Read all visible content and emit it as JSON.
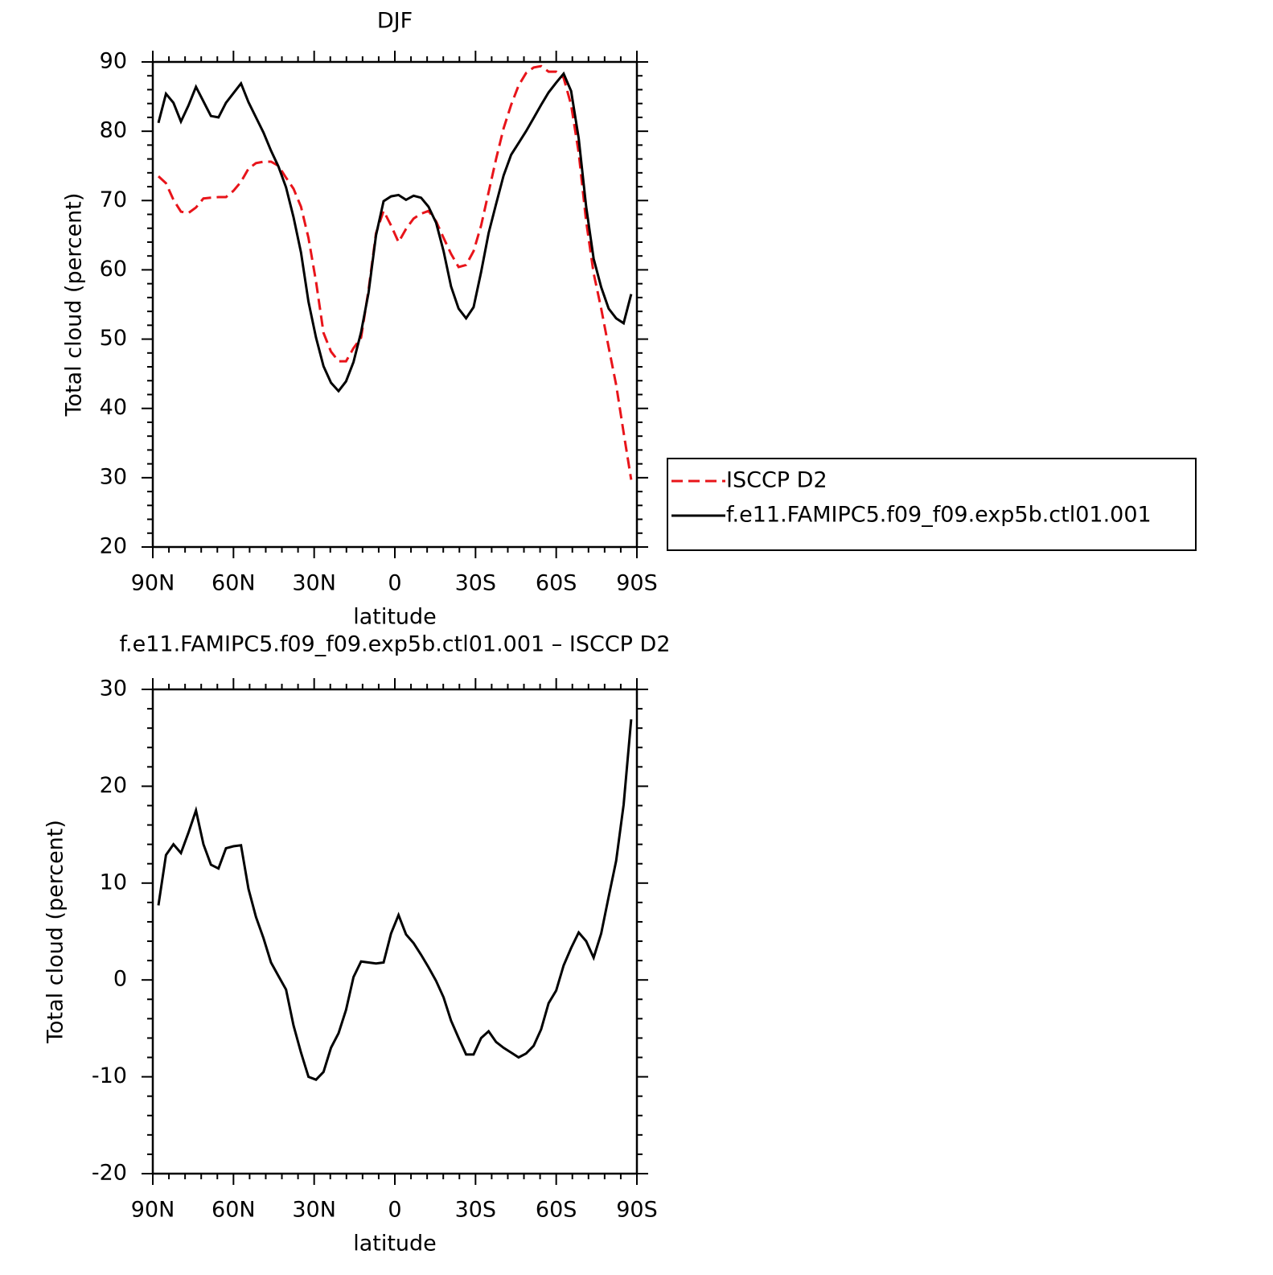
{
  "chart_data": [
    {
      "type": "line",
      "title": "DJF",
      "xlabel": "latitude",
      "ylabel": "Total cloud (percent)",
      "xlim": [
        90,
        -90
      ],
      "ylim": [
        20,
        90
      ],
      "xticks": [
        {
          "value": 90,
          "label": "90N"
        },
        {
          "value": 60,
          "label": "60N"
        },
        {
          "value": 30,
          "label": "30N"
        },
        0,
        {
          "value": -30,
          "label": "30S"
        },
        {
          "value": -60,
          "label": "60S"
        },
        {
          "value": -90,
          "label": "90S"
        }
      ],
      "yticks": [
        20,
        30,
        40,
        50,
        60,
        70,
        80,
        90
      ],
      "legend": "right",
      "x": [
        87.9,
        85.11,
        82.32,
        79.53,
        76.74,
        73.95,
        71.16,
        68.37,
        65.58,
        62.79,
        60.0,
        57.21,
        54.42,
        51.63,
        48.84,
        46.05,
        43.26,
        40.47,
        37.68,
        34.89,
        32.1,
        29.31,
        26.52,
        23.73,
        20.94,
        18.15,
        15.36,
        12.57,
        9.78,
        6.99,
        4.2,
        1.41,
        -1.38,
        -4.17,
        -6.96,
        -9.75,
        -12.54,
        -15.33,
        -18.12,
        -20.91,
        -23.7,
        -26.49,
        -29.28,
        -32.07,
        -34.86,
        -37.65,
        -40.44,
        -43.23,
        -46.02,
        -48.81,
        -51.6,
        -54.39,
        -57.18,
        -59.97,
        -62.76,
        -65.55,
        -68.34,
        -71.13,
        -73.92,
        -76.71,
        -79.5,
        -82.29,
        -85.08,
        -87.87
      ],
      "series": [
        {
          "name": "ISCCP D2",
          "color": "#e8141a",
          "linestyle": "dashed",
          "values": [
            73.5,
            72.5,
            70.1,
            68.4,
            68.2,
            69.0,
            70.3,
            70.4,
            70.5,
            70.5,
            71.4,
            72.7,
            74.6,
            75.4,
            75.6,
            75.6,
            75.0,
            73.3,
            71.7,
            69.1,
            64.6,
            58.3,
            50.9,
            48.2,
            46.8,
            46.8,
            48.7,
            50.2,
            57.1,
            65.3,
            68.5,
            66.4,
            64.0,
            65.9,
            67.4,
            68.1,
            68.5,
            67.0,
            64.6,
            62.3,
            60.4,
            60.7,
            62.7,
            66.4,
            71.2,
            76.0,
            80.4,
            83.8,
            86.6,
            88.4,
            89.2,
            89.4,
            88.6,
            88.6,
            87.7,
            83.8,
            76.9,
            67.0,
            59.5,
            54.4,
            48.8,
            43.4,
            36.5,
            29.7
          ]
        },
        {
          "name": "f.e11.FAMIPC5.f09_f09.exp5b.ctl01.001",
          "color": "#000000",
          "linestyle": "solid",
          "values": [
            81.2,
            85.4,
            84.1,
            81.4,
            83.7,
            86.4,
            84.3,
            82.2,
            82.0,
            84.1,
            85.5,
            86.9,
            84.2,
            82.0,
            79.8,
            77.2,
            74.9,
            71.9,
            67.6,
            62.5,
            55.4,
            50.2,
            46.1,
            43.7,
            42.5,
            43.9,
            46.7,
            51.0,
            56.7,
            65.0,
            69.9,
            70.6,
            70.8,
            70.1,
            70.7,
            70.4,
            69.1,
            66.8,
            62.7,
            57.6,
            54.4,
            53.0,
            54.6,
            59.7,
            65.3,
            69.5,
            73.6,
            76.6,
            78.3,
            80.0,
            81.9,
            83.8,
            85.6,
            87.0,
            88.3,
            85.8,
            79.0,
            69.1,
            61.6,
            57.5,
            54.4,
            53.0,
            52.3,
            56.5
          ]
        }
      ]
    },
    {
      "type": "line",
      "title": "f.e11.FAMIPC5.f09_f09.exp5b.ctl01.001 – ISCCP D2",
      "xlabel": "latitude",
      "ylabel": "Total cloud (percent)",
      "xlim": [
        90,
        -90
      ],
      "ylim": [
        -20,
        30
      ],
      "xticks": [
        {
          "value": 90,
          "label": "90N"
        },
        {
          "value": 60,
          "label": "60N"
        },
        {
          "value": 30,
          "label": "30N"
        },
        0,
        {
          "value": -30,
          "label": "30S"
        },
        {
          "value": -60,
          "label": "60S"
        },
        {
          "value": -90,
          "label": "90S"
        }
      ],
      "yticks": [
        -20,
        -10,
        0,
        10,
        20,
        30
      ],
      "x": [
        87.9,
        85.11,
        82.32,
        79.53,
        76.74,
        73.95,
        71.16,
        68.37,
        65.58,
        62.79,
        60.0,
        57.21,
        54.42,
        51.63,
        48.84,
        46.05,
        43.26,
        40.47,
        37.68,
        34.89,
        32.1,
        29.31,
        26.52,
        23.73,
        20.94,
        18.15,
        15.36,
        12.57,
        9.78,
        6.99,
        4.2,
        1.41,
        -1.38,
        -4.17,
        -6.96,
        -9.75,
        -12.54,
        -15.33,
        -18.12,
        -20.91,
        -23.7,
        -26.49,
        -29.28,
        -32.07,
        -34.86,
        -37.65,
        -40.44,
        -43.23,
        -46.02,
        -48.81,
        -51.6,
        -54.39,
        -57.18,
        -59.97,
        -62.76,
        -65.55,
        -68.34,
        -71.13,
        -73.92,
        -76.71,
        -79.5,
        -82.29,
        -85.08,
        -87.87
      ],
      "series": [
        {
          "color": "#000000",
          "linestyle": "solid",
          "values": [
            7.7,
            12.9,
            14.0,
            13.1,
            15.2,
            17.5,
            14.0,
            11.9,
            11.5,
            13.6,
            13.8,
            13.9,
            9.4,
            6.5,
            4.3,
            1.8,
            0.4,
            -1.0,
            -4.7,
            -7.5,
            -10.0,
            -10.3,
            -9.5,
            -7.0,
            -5.5,
            -3.1,
            0.3,
            1.9,
            1.8,
            1.7,
            1.8,
            4.8,
            6.7,
            4.7,
            3.8,
            2.6,
            1.3,
            -0.1,
            -1.8,
            -4.2,
            -6.0,
            -7.7,
            -7.7,
            -6.0,
            -5.3,
            -6.4,
            -7.0,
            -7.5,
            -8.0,
            -7.6,
            -6.8,
            -5.1,
            -2.4,
            -1.1,
            1.5,
            3.3,
            4.9,
            4.0,
            2.3,
            4.8,
            8.6,
            12.3,
            18.1,
            26.9
          ]
        }
      ]
    }
  ]
}
